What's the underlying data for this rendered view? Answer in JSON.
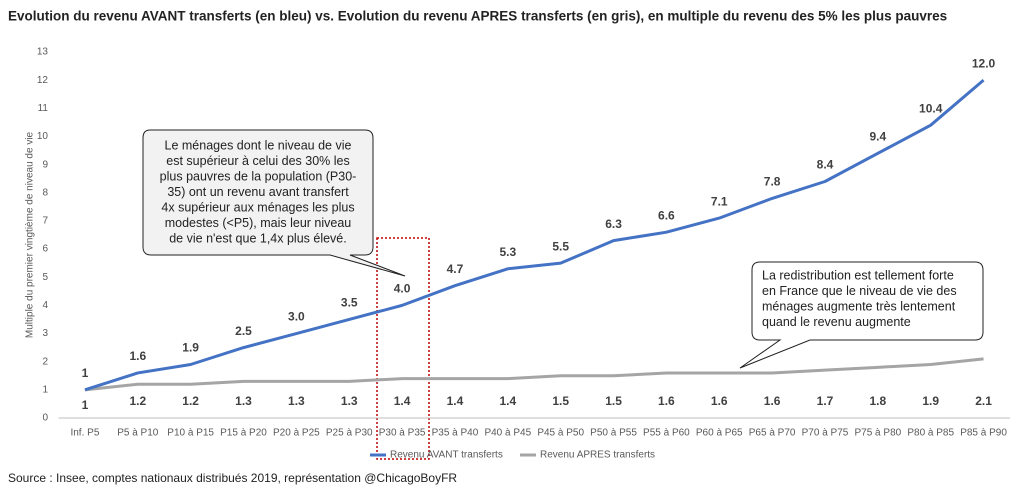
{
  "chart_data": {
    "type": "line",
    "title": "Evolution du revenu AVANT transferts (en bleu) vs. Evolution du revenu APRES transferts (en gris), en multiple du revenu des 5% les plus pauvres",
    "y_label": "Multiple du premier vingtième de niveau de vie",
    "source": "Source : Insee, comptes nationaux distribués 2019, représentation @ChicagoBoyFR",
    "categories": [
      "Inf. P5",
      "P5 à P10",
      "P10 à P15",
      "P15 à P20",
      "P20 à P25",
      "P25 à P30",
      "P30 à P35",
      "P35 à P40",
      "P40 à P45",
      "P45 à P50",
      "P50 à P55",
      "P55 à P60",
      "P60 à P65",
      "P65 à P70",
      "P70 à P75",
      "P75 à P80",
      "P80 à P85",
      "P85 à P90"
    ],
    "series": [
      {
        "name": "Revenu AVANT transferts",
        "color": "#4472c4",
        "values": [
          1,
          1.6,
          1.9,
          2.5,
          3.0,
          3.5,
          4.0,
          4.7,
          5.3,
          5.5,
          6.3,
          6.6,
          7.1,
          7.8,
          8.4,
          9.4,
          10.4,
          12.0
        ],
        "value_labels": [
          "1",
          "1.6",
          "1.9",
          "2.5",
          "3.0",
          "3.5",
          "4.0",
          "4.7",
          "5.3",
          "5.5",
          "6.3",
          "6.6",
          "7.1",
          "7.8",
          "8.4",
          "9.4",
          "10.4",
          "12.0"
        ]
      },
      {
        "name": "Revenu APRES transferts",
        "color": "#a5a5a5",
        "values": [
          1,
          1.2,
          1.2,
          1.3,
          1.3,
          1.3,
          1.4,
          1.4,
          1.4,
          1.5,
          1.5,
          1.6,
          1.6,
          1.6,
          1.7,
          1.8,
          1.9,
          2.1
        ],
        "value_labels": [
          "1",
          "1.2",
          "1.2",
          "1.3",
          "1.3",
          "1.3",
          "1.4",
          "1.4",
          "1.4",
          "1.5",
          "1.5",
          "1.6",
          "1.6",
          "1.6",
          "1.7",
          "1.8",
          "1.9",
          "2.1"
        ]
      }
    ],
    "ylim": [
      0,
      13
    ],
    "yticks": [
      0,
      1,
      2,
      3,
      4,
      5,
      6,
      7,
      8,
      9,
      10,
      11,
      12,
      13
    ],
    "grid": false,
    "legend": "bottom",
    "annotations": [
      {
        "lines": [
          "Le ménages dont le niveau de vie",
          "est supérieur à celui des 30% les",
          "plus pauvres de la population (P30-",
          "35) ont un revenu avant transfert",
          "4x supérieur aux ménages les plus",
          "modestes (<P5), mais leur niveau",
          "de vie n'est que 1,4x plus élevé."
        ]
      },
      {
        "lines": [
          "La redistribution est tellement forte",
          "en France que le niveau de vie des",
          "ménages augmente très lentement",
          "quand le revenu augmente"
        ]
      }
    ]
  }
}
